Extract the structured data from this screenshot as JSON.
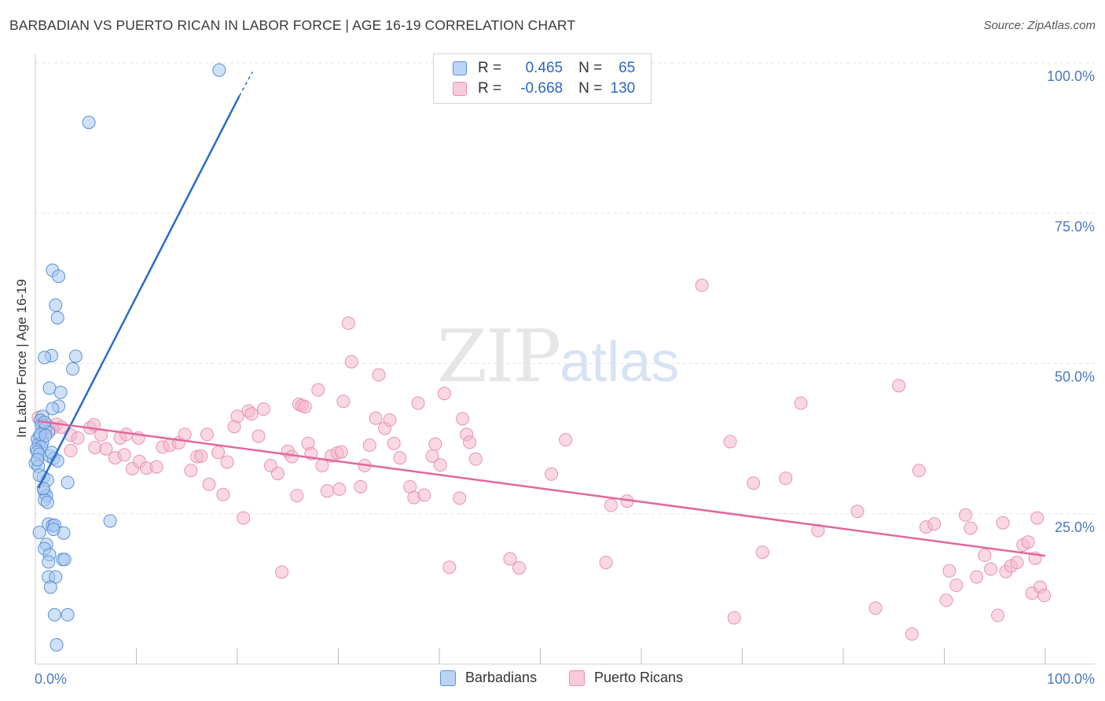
{
  "title": "BARBADIAN VS PUERTO RICAN IN LABOR FORCE | AGE 16-19 CORRELATION CHART",
  "source": "Source: ZipAtlas.com",
  "watermark": {
    "zip": "ZIP",
    "atlas": "atlas"
  },
  "legend": {
    "r_label": "R =",
    "n_label": "N =",
    "rows": [
      {
        "r": "0.465",
        "n": "65"
      },
      {
        "r": "-0.668",
        "n": "130"
      }
    ]
  },
  "colors": {
    "blue_fill": "#a8c8f0",
    "blue_stroke": "#5b8fd6",
    "blue_line": "#2a6bc8",
    "pink_fill": "#f5b8cc",
    "pink_stroke": "#e593b0",
    "pink_line": "#e0689a",
    "tick_label": "#4a78c2",
    "grid": "#e3e3e3"
  },
  "chart_data": {
    "type": "scatter",
    "title": "BARBADIAN VS PUERTO RICAN IN LABOR FORCE | AGE 16-19 CORRELATION CHART",
    "xlabel": "",
    "ylabel": "In Labor Force | Age 16-19",
    "x_tick_labels": [
      "0.0%",
      "100.0%"
    ],
    "y_tick_labels": [
      "25.0%",
      "50.0%",
      "75.0%",
      "100.0%"
    ],
    "xlim": [
      0,
      100
    ],
    "ylim": [
      0,
      100
    ],
    "grid": true,
    "legend_position": "top-center",
    "series": [
      {
        "name": "Barbadians",
        "r": 0.465,
        "n": 65,
        "trend": {
          "x0": 0.3,
          "y0": 29.3,
          "x1": 20.2,
          "y1": 94.5,
          "dash_x1": 21.5,
          "dash_y1": 98.5
        },
        "points": [
          [
            18.2,
            98.8
          ],
          [
            5.3,
            90.1
          ],
          [
            1.7,
            65.5
          ],
          [
            2.3,
            64.5
          ],
          [
            2.0,
            59.7
          ],
          [
            2.2,
            57.6
          ],
          [
            1.6,
            51.3
          ],
          [
            0.9,
            51.0
          ],
          [
            4.0,
            51.2
          ],
          [
            3.7,
            49.1
          ],
          [
            1.4,
            45.9
          ],
          [
            2.5,
            45.2
          ],
          [
            2.3,
            42.9
          ],
          [
            1.7,
            42.5
          ],
          [
            0.7,
            41.2
          ],
          [
            0.5,
            40.5
          ],
          [
            0.6,
            39.7
          ],
          [
            1.0,
            39.2
          ],
          [
            1.3,
            38.6
          ],
          [
            0.4,
            37.8
          ],
          [
            0.2,
            37.4
          ],
          [
            0.7,
            36.9
          ],
          [
            0.3,
            36.5
          ],
          [
            0.6,
            36.1
          ],
          [
            0.1,
            35.7
          ],
          [
            0.2,
            35.3
          ],
          [
            0.4,
            34.9
          ],
          [
            1.4,
            34.6
          ],
          [
            1.8,
            34.2
          ],
          [
            2.2,
            33.8
          ],
          [
            0.0,
            33.4
          ],
          [
            0.3,
            32.9
          ],
          [
            0.8,
            31.1
          ],
          [
            1.2,
            30.6
          ],
          [
            3.2,
            30.2
          ],
          [
            0.9,
            28.6
          ],
          [
            1.1,
            28.0
          ],
          [
            0.9,
            27.3
          ],
          [
            1.2,
            26.9
          ],
          [
            7.4,
            23.8
          ],
          [
            1.3,
            23.3
          ],
          [
            1.7,
            23.0
          ],
          [
            1.9,
            23.1
          ],
          [
            0.4,
            21.9
          ],
          [
            2.8,
            21.8
          ],
          [
            1.1,
            19.9
          ],
          [
            0.9,
            19.2
          ],
          [
            1.4,
            18.2
          ],
          [
            1.3,
            17.0
          ],
          [
            2.7,
            17.4
          ],
          [
            2.9,
            17.4
          ],
          [
            1.3,
            14.5
          ],
          [
            2.0,
            14.5
          ],
          [
            1.5,
            12.8
          ],
          [
            1.9,
            8.2
          ],
          [
            3.2,
            8.2
          ],
          [
            2.1,
            3.2
          ],
          [
            0.9,
            40.2
          ],
          [
            0.5,
            38.2
          ],
          [
            0.2,
            34.0
          ],
          [
            1.6,
            35.2
          ],
          [
            0.8,
            29.2
          ],
          [
            1.0,
            38.0
          ],
          [
            0.4,
            31.4
          ],
          [
            1.8,
            22.4
          ]
        ]
      },
      {
        "name": "Puerto Ricans",
        "r": -0.668,
        "n": 130,
        "trend": {
          "x0": 0.3,
          "y0": 40.4,
          "x1": 100.0,
          "y1": 18.0
        },
        "points": [
          [
            0.3,
            41.0
          ],
          [
            0.6,
            40.2
          ],
          [
            1.2,
            39.8
          ],
          [
            1.5,
            39.3
          ],
          [
            2.1,
            39.9
          ],
          [
            2.6,
            39.4
          ],
          [
            1.0,
            38.6
          ],
          [
            1.7,
            39.2
          ],
          [
            3.5,
            38.1
          ],
          [
            4.2,
            37.6
          ],
          [
            5.4,
            39.3
          ],
          [
            5.8,
            39.8
          ],
          [
            6.5,
            38.1
          ],
          [
            8.4,
            37.6
          ],
          [
            9.0,
            38.2
          ],
          [
            10.2,
            37.6
          ],
          [
            3.5,
            35.5
          ],
          [
            5.9,
            36.0
          ],
          [
            7.0,
            35.8
          ],
          [
            7.9,
            34.3
          ],
          [
            8.8,
            34.8
          ],
          [
            9.6,
            32.5
          ],
          [
            10.3,
            33.7
          ],
          [
            11.0,
            32.6
          ],
          [
            12.0,
            32.8
          ],
          [
            12.6,
            36.1
          ],
          [
            13.3,
            36.4
          ],
          [
            14.2,
            36.8
          ],
          [
            14.8,
            38.2
          ],
          [
            15.4,
            32.2
          ],
          [
            16.0,
            34.5
          ],
          [
            16.4,
            34.6
          ],
          [
            17.0,
            38.2
          ],
          [
            17.2,
            29.9
          ],
          [
            18.1,
            35.2
          ],
          [
            18.6,
            28.2
          ],
          [
            19.0,
            33.6
          ],
          [
            19.7,
            39.5
          ],
          [
            20.0,
            41.2
          ],
          [
            20.6,
            24.3
          ],
          [
            21.1,
            42.1
          ],
          [
            21.4,
            41.6
          ],
          [
            22.1,
            37.9
          ],
          [
            22.6,
            42.4
          ],
          [
            23.3,
            33.0
          ],
          [
            24.0,
            31.7
          ],
          [
            24.4,
            15.3
          ],
          [
            25.0,
            35.4
          ],
          [
            25.4,
            34.5
          ],
          [
            25.9,
            28.0
          ],
          [
            26.1,
            43.2
          ],
          [
            26.4,
            43.0
          ],
          [
            26.7,
            42.8
          ],
          [
            27.0,
            36.7
          ],
          [
            27.3,
            35.0
          ],
          [
            28.0,
            45.6
          ],
          [
            28.4,
            33.0
          ],
          [
            28.9,
            28.8
          ],
          [
            29.3,
            34.6
          ],
          [
            29.9,
            35.1
          ],
          [
            30.1,
            29.1
          ],
          [
            30.3,
            35.3
          ],
          [
            30.5,
            43.7
          ],
          [
            31.0,
            56.7
          ],
          [
            31.3,
            50.3
          ],
          [
            32.2,
            29.5
          ],
          [
            32.6,
            33.0
          ],
          [
            33.1,
            36.4
          ],
          [
            33.7,
            40.9
          ],
          [
            34.0,
            48.1
          ],
          [
            34.6,
            39.2
          ],
          [
            35.1,
            40.6
          ],
          [
            35.5,
            36.7
          ],
          [
            36.1,
            34.3
          ],
          [
            37.1,
            29.5
          ],
          [
            37.5,
            27.7
          ],
          [
            37.9,
            43.4
          ],
          [
            38.5,
            28.1
          ],
          [
            39.3,
            34.6
          ],
          [
            39.6,
            36.6
          ],
          [
            40.1,
            33.1
          ],
          [
            40.5,
            45.0
          ],
          [
            41.0,
            16.1
          ],
          [
            42.0,
            27.6
          ],
          [
            42.3,
            40.8
          ],
          [
            42.7,
            38.2
          ],
          [
            43.0,
            36.9
          ],
          [
            43.6,
            34.1
          ],
          [
            47.0,
            17.5
          ],
          [
            47.9,
            16.0
          ],
          [
            51.1,
            31.6
          ],
          [
            52.5,
            37.3
          ],
          [
            56.5,
            16.9
          ],
          [
            57.0,
            26.4
          ],
          [
            66.0,
            63.0
          ],
          [
            68.8,
            37.0
          ],
          [
            69.2,
            7.7
          ],
          [
            71.1,
            30.1
          ],
          [
            72.0,
            18.6
          ],
          [
            74.3,
            30.9
          ],
          [
            75.8,
            43.4
          ],
          [
            77.5,
            22.2
          ],
          [
            81.4,
            25.4
          ],
          [
            83.2,
            9.3
          ],
          [
            85.5,
            46.3
          ],
          [
            86.8,
            5.0
          ],
          [
            87.5,
            32.2
          ],
          [
            88.2,
            22.8
          ],
          [
            89.0,
            23.3
          ],
          [
            90.2,
            10.6
          ],
          [
            90.5,
            15.5
          ],
          [
            91.2,
            13.1
          ],
          [
            92.1,
            24.8
          ],
          [
            92.6,
            22.6
          ],
          [
            93.2,
            14.5
          ],
          [
            94.0,
            18.1
          ],
          [
            94.6,
            15.8
          ],
          [
            95.3,
            8.1
          ],
          [
            95.8,
            23.5
          ],
          [
            96.1,
            15.4
          ],
          [
            96.6,
            16.3
          ],
          [
            97.2,
            16.9
          ],
          [
            97.8,
            19.8
          ],
          [
            98.3,
            20.3
          ],
          [
            98.7,
            11.8
          ],
          [
            99.0,
            17.6
          ],
          [
            99.5,
            12.8
          ],
          [
            99.9,
            11.4
          ],
          [
            99.2,
            24.3
          ],
          [
            58.6,
            27.1
          ]
        ]
      }
    ]
  },
  "bottom_legend": [
    "Barbadians",
    "Puerto Ricans"
  ]
}
